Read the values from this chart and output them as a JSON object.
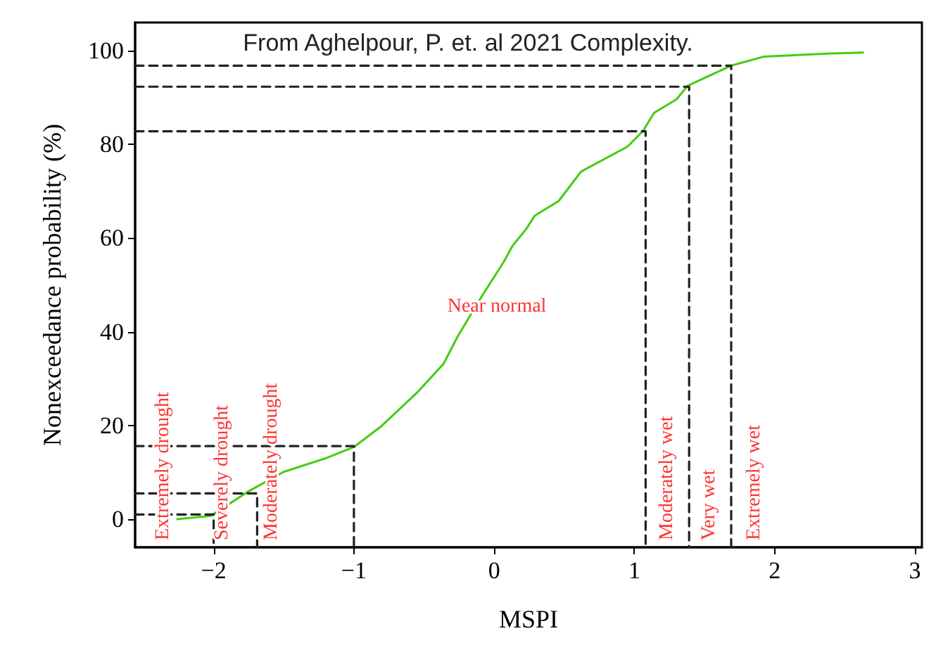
{
  "chart_data": {
    "type": "line",
    "xlabel": "MSPI",
    "ylabel": "Nonexceedance probability (%)",
    "annotations": [
      "From Aghelpour, P. et. al 2021 Complexity.",
      "Extremely drought",
      "Severely drought",
      "Moderately drought",
      "Near normal",
      "Moderately wet",
      "Very wet",
      "Extremely wet"
    ],
    "xlim": [
      -2.56,
      3.05
    ],
    "xticks": [
      -2,
      -1,
      0,
      1,
      2,
      3
    ],
    "ylim": [
      -6,
      106
    ],
    "yticks": [
      0,
      20,
      40,
      60,
      80,
      100
    ],
    "grid": false,
    "marker": "none",
    "series": [
      {
        "color": "#44cc11",
        "line_style": "solid",
        "x": [
          -2.26,
          -2.02,
          -1.76,
          -1.5,
          -1.2,
          -1.0,
          -0.81,
          -0.55,
          -0.36,
          -0.26,
          -0.1,
          0.07,
          0.13,
          0.23,
          0.29,
          0.46,
          0.62,
          0.95,
          1.06,
          1.14,
          1.3,
          1.38,
          1.69,
          1.92,
          2.4,
          2.63
        ],
        "values": [
          0,
          0.7,
          5.8,
          10.1,
          13,
          15.4,
          19.7,
          27,
          33.2,
          39,
          47,
          55,
          58.3,
          62,
          64.8,
          67.9,
          74.2,
          79.5,
          82.8,
          86.7,
          89.6,
          92.5,
          96.8,
          98.7,
          99.4,
          99.6
        ]
      },
      {
        "color": "#222222",
        "line_style": "dashed",
        "x": [
          -2.56,
          -2.0,
          -2.0
        ],
        "values": [
          1.0,
          1.0,
          -6
        ]
      },
      {
        "color": "#222222",
        "line_style": "dashed",
        "x": [
          -2.56,
          -1.69,
          -1.69
        ],
        "values": [
          5.5,
          5.5,
          -6
        ]
      },
      {
        "color": "#222222",
        "line_style": "dashed",
        "x": [
          -2.56,
          -1.0,
          -1.0
        ],
        "values": [
          15.6,
          15.6,
          -6
        ]
      },
      {
        "color": "#222222",
        "line_style": "dashed",
        "x": [
          -2.56,
          1.08,
          1.08
        ],
        "values": [
          82.8,
          82.8,
          -6
        ]
      },
      {
        "color": "#222222",
        "line_style": "dashed",
        "x": [
          -2.56,
          1.39,
          1.39
        ],
        "values": [
          92.3,
          92.3,
          -6
        ]
      },
      {
        "color": "#222222",
        "line_style": "dashed",
        "x": [
          -2.56,
          1.69,
          1.69
        ],
        "values": [
          96.8,
          96.8,
          -6
        ]
      }
    ]
  }
}
